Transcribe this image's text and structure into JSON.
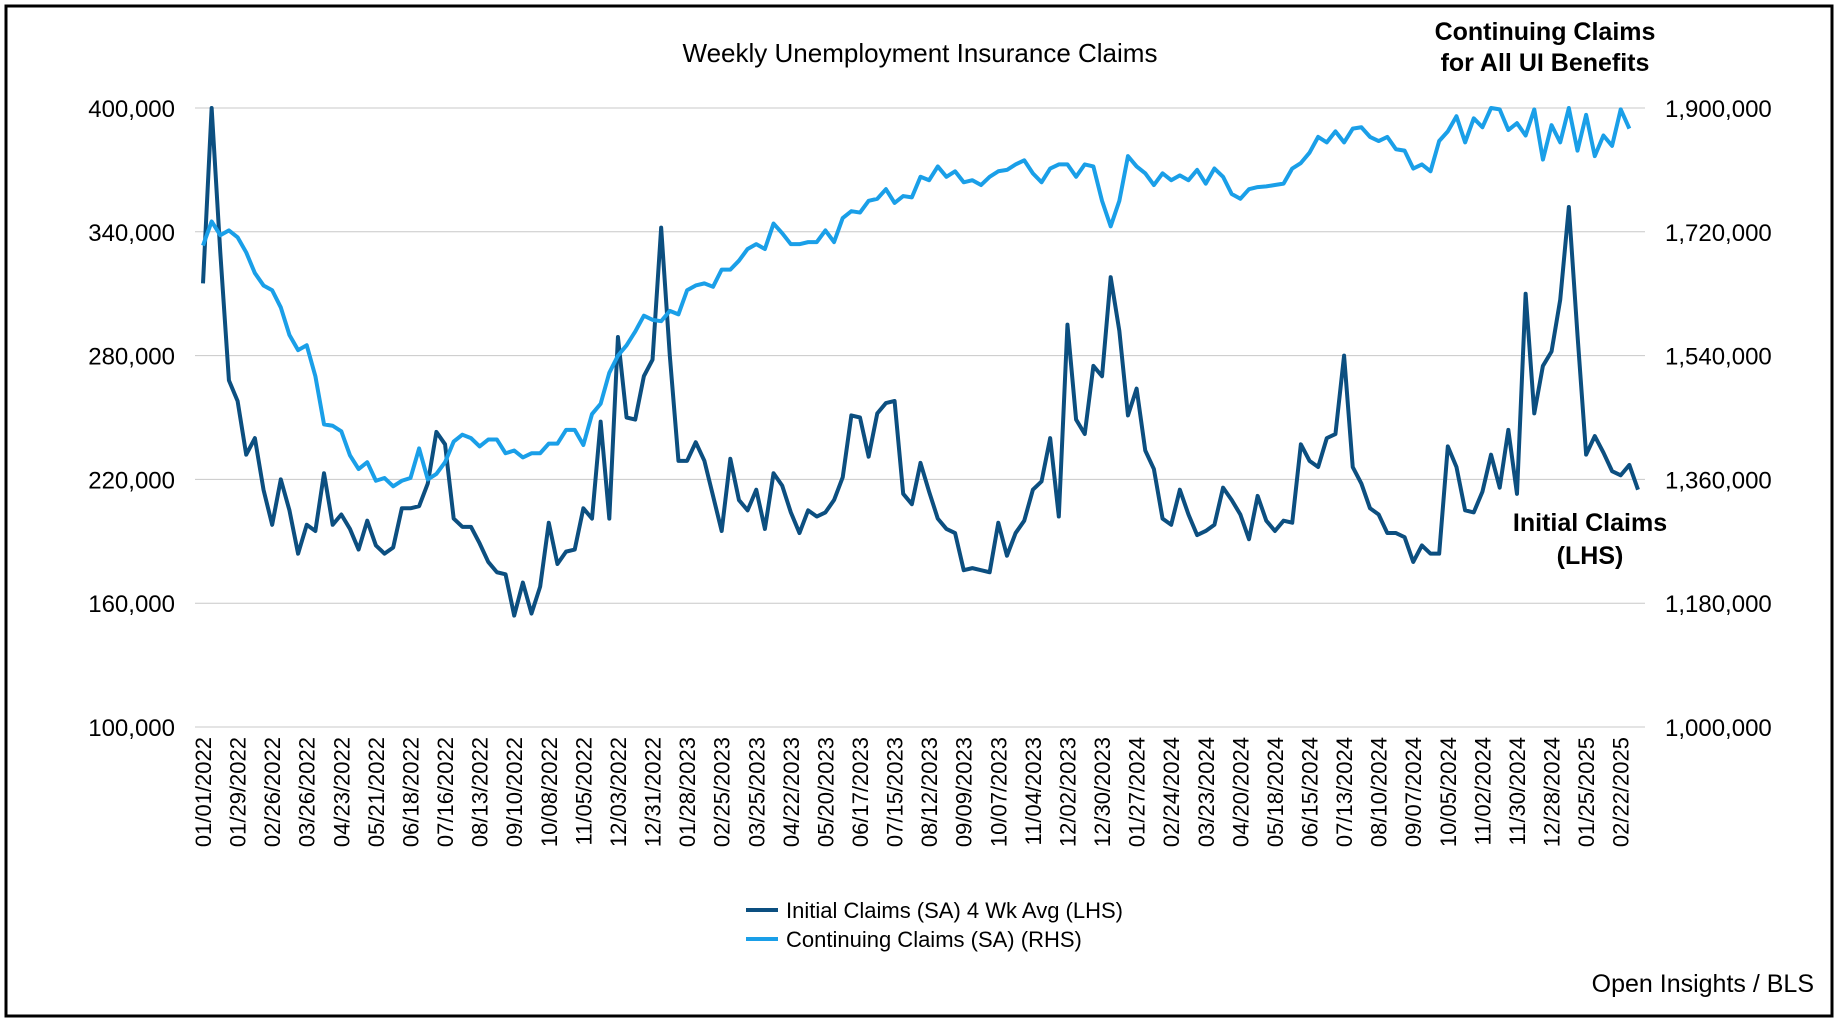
{
  "chart_data": {
    "type": "line",
    "title": "Weekly Unemployment Insurance Claims",
    "annotations": [
      "Continuing Claims",
      "for All UI Benefits",
      "Initial Claims",
      "(LHS)"
    ],
    "source": "Open Insights / BLS",
    "legend": "bottom",
    "grid": true,
    "categories": [
      "01/01/2022",
      null,
      null,
      null,
      "01/29/2022",
      null,
      null,
      null,
      "02/26/2022",
      null,
      null,
      null,
      "03/26/2022",
      null,
      null,
      null,
      "04/23/2022",
      null,
      null,
      null,
      "05/21/2022",
      null,
      null,
      null,
      "06/18/2022",
      null,
      null,
      null,
      "07/16/2022",
      null,
      null,
      null,
      "08/13/2022",
      null,
      null,
      null,
      "09/10/2022",
      null,
      null,
      null,
      "10/08/2022",
      null,
      null,
      null,
      "11/05/2022",
      null,
      null,
      null,
      "12/03/2022",
      null,
      null,
      null,
      "12/31/2022",
      null,
      null,
      null,
      "01/28/2023",
      null,
      null,
      null,
      "02/25/2023",
      null,
      null,
      null,
      "03/25/2023",
      null,
      null,
      null,
      "04/22/2023",
      null,
      null,
      null,
      "05/20/2023",
      null,
      null,
      null,
      "06/17/2023",
      null,
      null,
      null,
      "07/15/2023",
      null,
      null,
      null,
      "08/12/2023",
      null,
      null,
      null,
      "09/09/2023",
      null,
      null,
      null,
      "10/07/2023",
      null,
      null,
      null,
      "11/04/2023",
      null,
      null,
      null,
      "12/02/2023",
      null,
      null,
      null,
      "12/30/2023",
      null,
      null,
      null,
      "01/27/2024",
      null,
      null,
      null,
      "02/24/2024",
      null,
      null,
      null,
      "03/23/2024",
      null,
      null,
      null,
      "04/20/2024",
      null,
      null,
      null,
      "05/18/2024",
      null,
      null,
      null,
      "06/15/2024",
      null,
      null,
      null,
      "07/13/2024",
      null,
      null,
      null,
      "08/10/2024",
      null,
      null,
      null,
      "09/07/2024",
      null,
      null,
      null,
      "10/05/2024",
      null,
      null,
      null,
      "11/02/2024",
      null,
      null,
      null,
      "11/30/2024",
      null,
      null,
      null,
      "12/28/2024",
      null,
      null,
      null,
      "01/25/2025",
      null,
      null,
      null,
      "02/22/2025",
      null,
      null
    ],
    "ylim": [
      100000,
      400000
    ],
    "yticks": [
      {
        "value": 100000,
        "label": "100,000"
      },
      {
        "value": 160000,
        "label": "160,000"
      },
      {
        "value": 220000,
        "label": "220,000"
      },
      {
        "value": 280000,
        "label": "280,000"
      },
      {
        "value": 340000,
        "label": "340,000"
      },
      {
        "value": 400000,
        "label": "400,000"
      }
    ],
    "y2lim": [
      1000000,
      1900000
    ],
    "y2ticks": [
      {
        "value": 1000000,
        "label": "1,000,000"
      },
      {
        "value": 1180000,
        "label": "1,180,000"
      },
      {
        "value": 1360000,
        "label": "1,360,000"
      },
      {
        "value": 1540000,
        "label": "1,540,000"
      },
      {
        "value": 1720000,
        "label": "1,720,000"
      },
      {
        "value": 1900000,
        "label": "1,900,000"
      }
    ],
    "series": [
      {
        "name": "Initial Claims (SA) 4 Wk Avg (LHS)",
        "color": "#0c4f80",
        "values": [
          315000,
          400000,
          330000,
          268000,
          258000,
          232000,
          240000,
          215000,
          198000,
          220000,
          205000,
          184000,
          198000,
          195000,
          223000,
          198000,
          203000,
          196000,
          186000,
          200000,
          188000,
          184000,
          187000,
          206000,
          206000,
          207000,
          218000,
          243000,
          237000,
          201000,
          197000,
          197000,
          189000,
          180000,
          175000,
          174000,
          154000,
          170000,
          155000,
          168000,
          199000,
          179000,
          185000,
          186000,
          206000,
          201000,
          248000,
          201000,
          289000,
          250000,
          249000,
          270000,
          278000,
          342000,
          280000,
          229000,
          229000,
          238000,
          229000,
          212000,
          195000,
          230000,
          210000,
          205000,
          215000,
          196000,
          223000,
          217000,
          204000,
          194000,
          205000,
          202000,
          204000,
          210000,
          221000,
          251000,
          250000,
          231000,
          252000,
          257000,
          258000,
          213000,
          208000,
          228000,
          214000,
          201000,
          196000,
          194000,
          176000,
          177000,
          176000,
          175000,
          199000,
          183000,
          194000,
          200000,
          215000,
          219000,
          240000,
          202000,
          295000,
          249000,
          242000,
          275000,
          270000,
          318000,
          292000,
          251000,
          264000,
          234000,
          225000,
          201000,
          198000,
          215000,
          203000,
          193000,
          195000,
          198000,
          216000,
          210000,
          203000,
          191000,
          212000,
          200000,
          195000,
          200000,
          199000,
          237000,
          229000,
          226000,
          240000,
          242000,
          280000,
          226000,
          218000,
          206000,
          203000,
          194000,
          194000,
          192000,
          180000,
          188000,
          184000,
          184000,
          236000,
          226000,
          205000,
          204000,
          214000,
          232000,
          216000,
          244000,
          213000,
          310000,
          252000,
          275000,
          282000,
          307000,
          352000,
          290000,
          232000,
          241000,
          233000,
          224000,
          222000,
          227000,
          215000
        ]
      },
      {
        "name": "Continuing Claims (SA) (RHS)",
        "color": "#1a9fe8",
        "axis": "y2",
        "values": [
          1700000,
          1735000,
          1715000,
          1722000,
          1712000,
          1690000,
          1660000,
          1642000,
          1635000,
          1610000,
          1570000,
          1548000,
          1555000,
          1510000,
          1440000,
          1438000,
          1430000,
          1395000,
          1375000,
          1385000,
          1358000,
          1362000,
          1350000,
          1358000,
          1362000,
          1405000,
          1360000,
          1368000,
          1385000,
          1415000,
          1425000,
          1420000,
          1408000,
          1418000,
          1418000,
          1398000,
          1402000,
          1392000,
          1398000,
          1398000,
          1412000,
          1412000,
          1432000,
          1432000,
          1410000,
          1455000,
          1470000,
          1515000,
          1540000,
          1555000,
          1575000,
          1598000,
          1592000,
          1590000,
          1605000,
          1600000,
          1635000,
          1642000,
          1645000,
          1640000,
          1665000,
          1665000,
          1678000,
          1695000,
          1702000,
          1695000,
          1732000,
          1718000,
          1702000,
          1702000,
          1705000,
          1705000,
          1722000,
          1705000,
          1740000,
          1750000,
          1748000,
          1765000,
          1768000,
          1782000,
          1762000,
          1772000,
          1770000,
          1800000,
          1795000,
          1815000,
          1800000,
          1808000,
          1792000,
          1795000,
          1788000,
          1800000,
          1808000,
          1810000,
          1818000,
          1824000,
          1805000,
          1792000,
          1812000,
          1818000,
          1818000,
          1800000,
          1818000,
          1815000,
          1765000,
          1728000,
          1765000,
          1830000,
          1815000,
          1805000,
          1788000,
          1805000,
          1795000,
          1802000,
          1795000,
          1810000,
          1790000,
          1812000,
          1800000,
          1775000,
          1768000,
          1782000,
          1785000,
          1786000,
          1788000,
          1790000,
          1812000,
          1820000,
          1835000,
          1858000,
          1850000,
          1866000,
          1850000,
          1870000,
          1872000,
          1858000,
          1852000,
          1858000,
          1840000,
          1838000,
          1812000,
          1818000,
          1808000,
          1852000,
          1866000,
          1888000,
          1850000,
          1885000,
          1872000,
          1900000,
          1898000,
          1868000,
          1878000,
          1860000,
          1898000,
          1825000,
          1875000,
          1850000,
          1900000,
          1838000,
          1890000,
          1830000,
          1860000,
          1845000,
          1898000,
          1870000,
          null
        ]
      }
    ]
  }
}
